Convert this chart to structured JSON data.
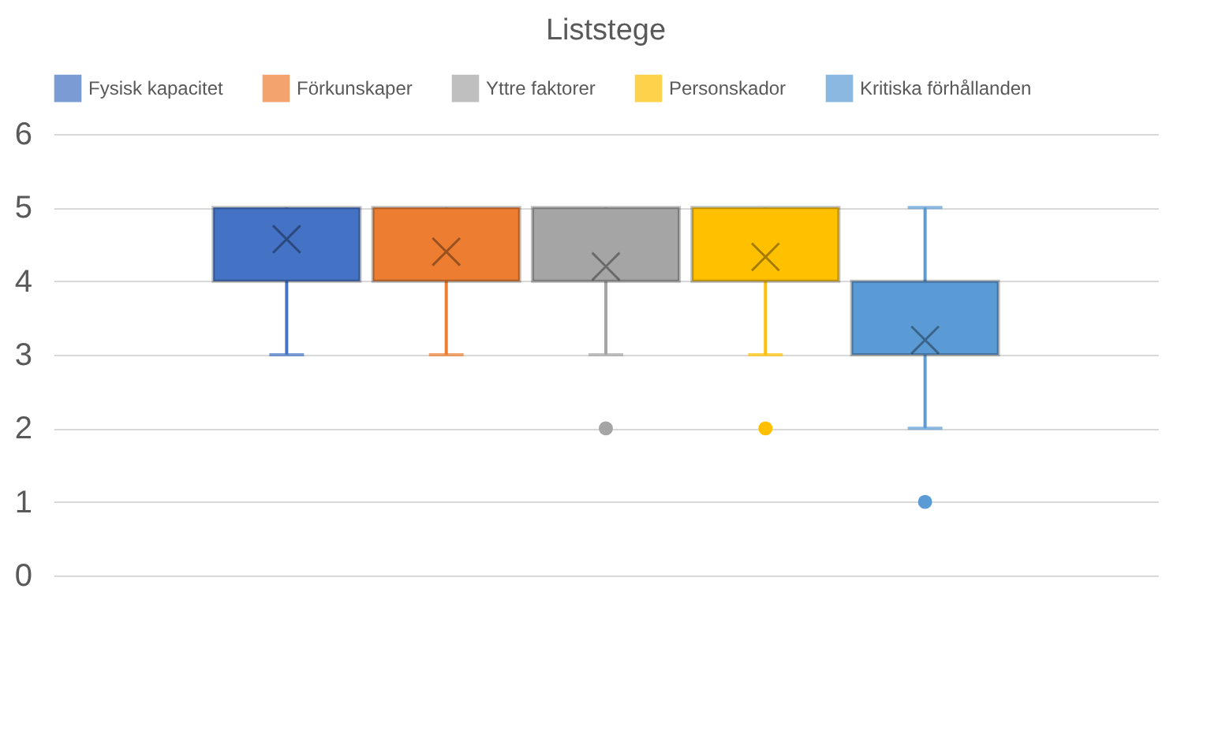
{
  "chart_data": {
    "type": "box",
    "title": "Liststege",
    "categories": [
      null
    ],
    "series": [
      {
        "name": "Fysisk kapacitet",
        "color": "#4472c4",
        "boxes": [
          {
            "low": 3,
            "q1": 4,
            "median": 5,
            "q3": 5,
            "high": 5,
            "mean": 4.57
          }
        ]
      },
      {
        "name": "Förkunskaper",
        "color": "#ed7d31",
        "boxes": [
          {
            "low": 3,
            "q1": 4,
            "median": 5,
            "q3": 5,
            "high": 5,
            "mean": 4.4
          }
        ]
      },
      {
        "name": "Yttre faktorer",
        "color": "#a5a5a5",
        "boxes": [
          {
            "low": 3,
            "q1": 4,
            "median": 4,
            "q3": 5,
            "high": 5,
            "mean": 4.2,
            "outliers": [
              2
            ]
          }
        ]
      },
      {
        "name": "Personskador",
        "color": "#ffc000",
        "boxes": [
          {
            "low": 3,
            "q1": 4,
            "median": 4,
            "q3": 5,
            "high": 5,
            "mean": 4.33,
            "outliers": [
              2
            ]
          }
        ]
      },
      {
        "name": "Kritiska förhållanden",
        "color": "#5b9bd5",
        "boxes": [
          {
            "low": 2,
            "q1": 3,
            "median": 3,
            "q3": 4,
            "high": 5,
            "mean": 3.2,
            "outliers": [
              1
            ]
          }
        ]
      }
    ],
    "ylim": [
      0,
      6
    ],
    "yticks": [
      0,
      1,
      2,
      3,
      4,
      5,
      6
    ],
    "grid": "y",
    "legend": "top",
    "tick_labels": "y"
  }
}
